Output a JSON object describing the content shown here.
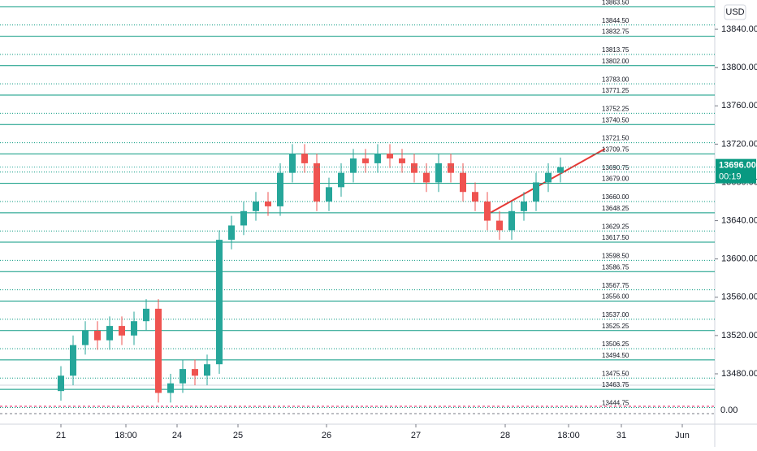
{
  "chart_data": {
    "type": "candlestick",
    "currency": "USD",
    "up_color": "#26a69a",
    "down_color": "#ef5350",
    "level_color": "#089981",
    "xlim": [
      -7.5,
      80.5
    ],
    "ylim": [
      13469.8,
      13870.6
    ],
    "xticks": [
      {
        "value": 0,
        "label": "21"
      },
      {
        "value": 8,
        "label": "18:00"
      },
      {
        "value": 14.3,
        "label": "24"
      },
      {
        "value": 21.8,
        "label": "25"
      },
      {
        "value": 32.7,
        "label": "26"
      },
      {
        "value": 43.7,
        "label": "27"
      },
      {
        "value": 54.7,
        "label": "28"
      },
      {
        "value": 62.5,
        "label": "18:00"
      },
      {
        "value": 69,
        "label": "31"
      },
      {
        "value": 76.5,
        "label": "Jun"
      }
    ],
    "yticks": [
      {
        "value": 13480,
        "label": "13480.00"
      },
      {
        "value": 13520,
        "label": "13520.00"
      },
      {
        "value": 13560,
        "label": "13560.00"
      },
      {
        "value": 13600,
        "label": "13600.00"
      },
      {
        "value": 13640,
        "label": "13640.00"
      },
      {
        "value": 13680,
        "label": "13680.00"
      },
      {
        "value": 13720,
        "label": "13720.00"
      },
      {
        "value": 13760,
        "label": "13760.00"
      },
      {
        "value": 13800,
        "label": "13800.00"
      },
      {
        "value": 13840,
        "label": "13840.00"
      }
    ],
    "levels": [
      {
        "value": 13863.5,
        "label": "13863.50"
      },
      {
        "value": 13844.5,
        "label": "13844.50"
      },
      {
        "value": 13832.75,
        "label": "13832.75"
      },
      {
        "value": 13813.75,
        "label": "13813.75"
      },
      {
        "value": 13802,
        "label": "13802.00"
      },
      {
        "value": 13783,
        "label": "13783.00"
      },
      {
        "value": 13771.25,
        "label": "13771.25"
      },
      {
        "value": 13752.25,
        "label": "13752.25"
      },
      {
        "value": 13740.5,
        "label": "13740.50"
      },
      {
        "value": 13721.5,
        "label": "13721.50"
      },
      {
        "value": 13709.75,
        "label": "13709.75"
      },
      {
        "value": 13690.75,
        "label": "13690.75"
      },
      {
        "value": 13679,
        "label": "13679.00"
      },
      {
        "value": 13660,
        "label": "13660.00"
      },
      {
        "value": 13648.25,
        "label": "13648.25"
      },
      {
        "value": 13629.25,
        "label": "13629.25"
      },
      {
        "value": 13617.5,
        "label": "13617.50"
      },
      {
        "value": 13598.5,
        "label": "13598.50"
      },
      {
        "value": 13586.75,
        "label": "13586.75"
      },
      {
        "value": 13567.75,
        "label": "13567.75"
      },
      {
        "value": 13556,
        "label": "13556.00"
      },
      {
        "value": 13537,
        "label": "13537.00"
      },
      {
        "value": 13525.25,
        "label": "13525.25"
      },
      {
        "value": 13506.25,
        "label": "13506.25"
      },
      {
        "value": 13494.5,
        "label": "13494.50"
      },
      {
        "value": 13475.5,
        "label": "13475.50"
      },
      {
        "value": 13463.75,
        "label": "13463.75"
      },
      {
        "value": 13444.75,
        "label": "13444.75"
      }
    ],
    "x": [
      0,
      1.5,
      3,
      4.5,
      6,
      7.5,
      9,
      10.5,
      12,
      13.5,
      15,
      16.5,
      18,
      19.5,
      21,
      22.5,
      24,
      25.5,
      27,
      28.5,
      30,
      31.5,
      33,
      34.5,
      36,
      37.5,
      39,
      40.5,
      42,
      43.5,
      45,
      46.5,
      48,
      49.5,
      51,
      52.5,
      54,
      55.5,
      57,
      58.5,
      60,
      61.5
    ],
    "open": [
      13462,
      13478,
      13510,
      13525,
      13515,
      13530,
      13520,
      13535,
      13548,
      13460,
      13470,
      13485,
      13478,
      13490,
      13620,
      13635,
      13650,
      13660,
      13655,
      13690,
      13710,
      13700,
      13660,
      13675,
      13690,
      13705,
      13700,
      13710,
      13705,
      13700,
      13690,
      13680,
      13700,
      13690,
      13670,
      13660,
      13640,
      13630,
      13650,
      13660,
      13680,
      13690
    ],
    "high": [
      13488,
      13520,
      13535,
      13535,
      13540,
      13540,
      13545,
      13558,
      13558,
      13480,
      13495,
      13495,
      13500,
      13630,
      13645,
      13660,
      13670,
      13670,
      13700,
      13720,
      13720,
      13710,
      13685,
      13700,
      13715,
      13715,
      13720,
      13720,
      13715,
      13710,
      13700,
      13710,
      13710,
      13700,
      13680,
      13670,
      13650,
      13660,
      13670,
      13690,
      13700,
      13706
    ],
    "low": [
      13452,
      13468,
      13500,
      13505,
      13505,
      13510,
      13510,
      13525,
      13450,
      13450,
      13460,
      13468,
      13468,
      13480,
      13610,
      13625,
      13640,
      13645,
      13645,
      13680,
      13690,
      13650,
      13650,
      13665,
      13680,
      13690,
      13690,
      13695,
      13690,
      13680,
      13670,
      13670,
      13680,
      13660,
      13650,
      13630,
      13620,
      13620,
      13640,
      13650,
      13670,
      13680
    ],
    "close": [
      13478,
      13510,
      13525,
      13515,
      13530,
      13520,
      13535,
      13548,
      13460,
      13470,
      13485,
      13478,
      13490,
      13620,
      13635,
      13650,
      13660,
      13655,
      13690,
      13710,
      13700,
      13660,
      13675,
      13690,
      13705,
      13700,
      13710,
      13705,
      13700,
      13690,
      13680,
      13700,
      13690,
      13670,
      13660,
      13640,
      13630,
      13650,
      13660,
      13680,
      13690,
      13696
    ],
    "last_price": {
      "value": 13696,
      "label": "13696.00"
    },
    "countdown": "00:19",
    "oscillator_ticks": [
      "0.00"
    ]
  }
}
